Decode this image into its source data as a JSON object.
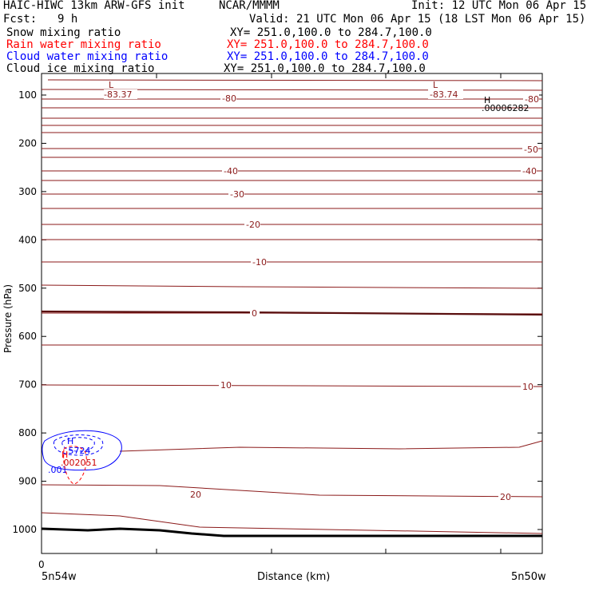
{
  "header": {
    "model": "HAIC-HIWC 13km ARW-GFS init",
    "org": "NCAR/MMMM",
    "init": "Init: 12 UTC Mon 06 Apr 15",
    "fcst_label": "Fcst:",
    "fcst_value": "9 h",
    "valid": "Valid: 21 UTC Mon 06 Apr 15 (18 LST Mon 06 Apr 15)"
  },
  "fields": [
    {
      "name": "Snow mixing ratio",
      "xy": "XY= 251.0,100.0 to 284.7,100.0",
      "color": "#000000"
    },
    {
      "name": "Rain water mixing ratio",
      "xy": "XY= 251.0,100.0 to 284.7,100.0",
      "color": "#ff0000"
    },
    {
      "name": "Cloud water mixing ratio",
      "xy": "XY= 251.0,100.0 to 284.7,100.0",
      "color": "#0000ff"
    },
    {
      "name": "Cloud ice mixing ratio",
      "xy": "XY= 251.0,100.0 to 284.7,100.0",
      "color": "#000000"
    }
  ],
  "chart_data": {
    "type": "contour cross-section",
    "ylabel": "Pressure (hPa)",
    "xlabel": "Distance (km)",
    "y_ticks": [
      100,
      200,
      300,
      400,
      500,
      600,
      700,
      800,
      900,
      1000
    ],
    "x_tick_label": "0",
    "x_left_label": "5n54w",
    "x_right_label": "5n50w",
    "contour_color": "#8b1a1a",
    "temperature_labels": [
      "-83.37",
      "-80",
      "-83.74",
      "-80",
      "-50",
      "-40",
      "-40",
      "-30",
      "-20",
      "-10",
      "0",
      "10",
      "10",
      "20",
      "20"
    ],
    "extrema": [
      {
        "type": "L",
        "value": "-83.37"
      },
      {
        "type": "L",
        "value": "-83.74"
      },
      {
        "type": "H",
        "value": ".00006282"
      }
    ],
    "cloud_water": {
      "max_label": "H",
      "max_value": ".5724",
      "outer_label": ".001",
      "color": "#0000ff"
    },
    "rain_water": {
      "max_label": "H",
      "max_value": ".002051",
      "color": "#ff0000"
    }
  }
}
